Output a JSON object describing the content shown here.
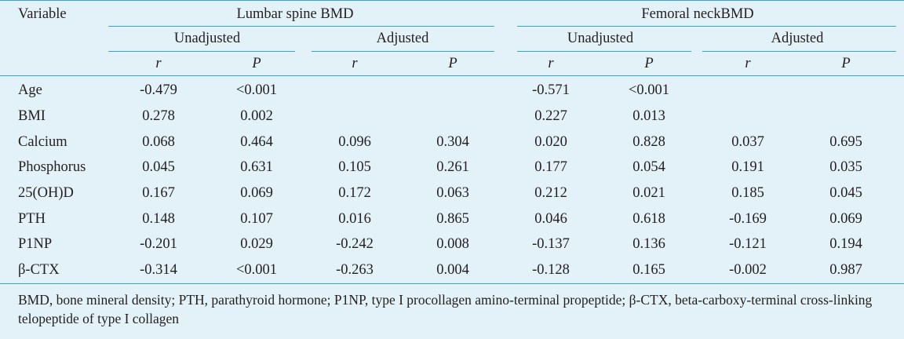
{
  "table": {
    "variable_header": "Variable",
    "groups": [
      {
        "label": "Lumbar spine BMD",
        "subgroups": [
          {
            "label": "Unadjusted"
          },
          {
            "label": "Adjusted"
          }
        ]
      },
      {
        "label": "Femoral neckBMD",
        "subgroups": [
          {
            "label": "Unadjusted"
          },
          {
            "label": "Adjusted"
          }
        ]
      }
    ],
    "stat_headers": [
      "r",
      "P",
      "r",
      "P",
      "r",
      "P",
      "r",
      "P"
    ],
    "rows": [
      {
        "label": "Age",
        "values": [
          "-0.479",
          "<0.001",
          "",
          "",
          "-0.571",
          "<0.001",
          "",
          ""
        ]
      },
      {
        "label": "BMI",
        "values": [
          "0.278",
          "0.002",
          "",
          "",
          "0.227",
          "0.013",
          "",
          ""
        ]
      },
      {
        "label": "Calcium",
        "values": [
          "0.068",
          "0.464",
          "0.096",
          "0.304",
          "0.020",
          "0.828",
          "0.037",
          "0.695"
        ]
      },
      {
        "label": "Phosphorus",
        "values": [
          "0.045",
          "0.631",
          "0.105",
          "0.261",
          "0.177",
          "0.054",
          "0.191",
          "0.035"
        ]
      },
      {
        "label": "25(OH)D",
        "values": [
          "0.167",
          "0.069",
          "0.172",
          "0.063",
          "0.212",
          "0.021",
          "0.185",
          "0.045"
        ]
      },
      {
        "label": "PTH",
        "values": [
          "0.148",
          "0.107",
          "0.016",
          "0.865",
          "0.046",
          "0.618",
          "-0.169",
          "0.069"
        ]
      },
      {
        "label": "P1NP",
        "values": [
          "-0.201",
          "0.029",
          "-0.242",
          "0.008",
          "-0.137",
          "0.136",
          "-0.121",
          "0.194"
        ]
      },
      {
        "label": "β-CTX",
        "values": [
          "-0.314",
          "<0.001",
          "-0.263",
          "0.004",
          "-0.128",
          "0.165",
          "-0.002",
          "0.987"
        ]
      }
    ],
    "footnote": "BMD, bone mineral density; PTH, parathyroid hormone; P1NP, type I procollagen amino-terminal propeptide; β-CTX, beta-carboxy-terminal cross-linking telopeptide of type I collagen"
  },
  "colors": {
    "background": "#e3f1f9",
    "rule": "#3aa0cc",
    "text": "#231f20"
  }
}
